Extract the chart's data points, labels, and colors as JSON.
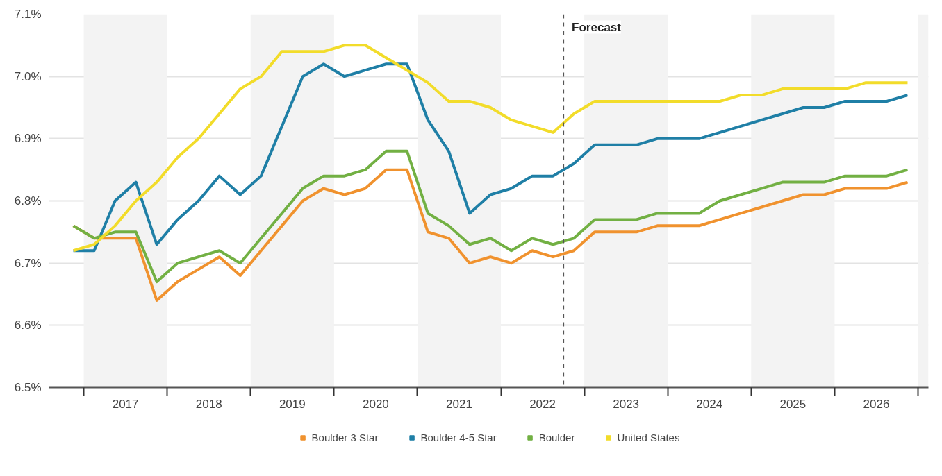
{
  "chart_data": {
    "type": "line",
    "x": [
      2016.875,
      2017.125,
      2017.375,
      2017.625,
      2017.875,
      2018.125,
      2018.375,
      2018.625,
      2018.875,
      2019.125,
      2019.375,
      2019.625,
      2019.875,
      2020.125,
      2020.375,
      2020.625,
      2020.875,
      2021.125,
      2021.375,
      2021.625,
      2021.875,
      2022.125,
      2022.375,
      2022.625,
      2022.875,
      2023.125,
      2023.375,
      2023.625,
      2023.875,
      2024.125,
      2024.375,
      2024.625,
      2024.875,
      2025.125,
      2025.375,
      2025.625,
      2025.875,
      2026.125,
      2026.375,
      2026.625,
      2026.875
    ],
    "series": [
      {
        "name": "Boulder 3 Star",
        "color": "#f0922e",
        "values": [
          6.76,
          6.74,
          6.74,
          6.74,
          6.64,
          6.67,
          6.69,
          6.71,
          6.68,
          6.72,
          6.76,
          6.8,
          6.82,
          6.81,
          6.82,
          6.85,
          6.85,
          6.75,
          6.74,
          6.7,
          6.71,
          6.7,
          6.72,
          6.71,
          6.72,
          6.75,
          6.75,
          6.75,
          6.76,
          6.76,
          6.76,
          6.77,
          6.78,
          6.79,
          6.8,
          6.81,
          6.81,
          6.82,
          6.82,
          6.82,
          6.83
        ]
      },
      {
        "name": "Boulder 4-5 Star",
        "color": "#1f7fa6",
        "values": [
          6.72,
          6.72,
          6.8,
          6.83,
          6.73,
          6.77,
          6.8,
          6.84,
          6.81,
          6.84,
          6.92,
          7.0,
          7.02,
          7.0,
          7.01,
          7.02,
          7.02,
          6.93,
          6.88,
          6.78,
          6.81,
          6.82,
          6.84,
          6.84,
          6.86,
          6.89,
          6.89,
          6.89,
          6.9,
          6.9,
          6.9,
          6.91,
          6.92,
          6.93,
          6.94,
          6.95,
          6.95,
          6.96,
          6.96,
          6.96,
          6.97
        ]
      },
      {
        "name": "Boulder",
        "color": "#72b043",
        "values": [
          6.76,
          6.74,
          6.75,
          6.75,
          6.67,
          6.7,
          6.71,
          6.72,
          6.7,
          6.74,
          6.78,
          6.82,
          6.84,
          6.84,
          6.85,
          6.88,
          6.88,
          6.78,
          6.76,
          6.73,
          6.74,
          6.72,
          6.74,
          6.73,
          6.74,
          6.77,
          6.77,
          6.77,
          6.78,
          6.78,
          6.78,
          6.8,
          6.81,
          6.82,
          6.83,
          6.83,
          6.83,
          6.84,
          6.84,
          6.84,
          6.85
        ]
      },
      {
        "name": "United States",
        "color": "#f2dc2a",
        "values": [
          6.72,
          6.73,
          6.76,
          6.8,
          6.83,
          6.87,
          6.9,
          6.94,
          6.98,
          7.0,
          7.04,
          7.04,
          7.04,
          7.05,
          7.05,
          7.03,
          7.01,
          6.99,
          6.96,
          6.96,
          6.95,
          6.93,
          6.92,
          6.91,
          6.94,
          6.96,
          6.96,
          6.96,
          6.96,
          6.96,
          6.96,
          6.96,
          6.97,
          6.97,
          6.98,
          6.98,
          6.98,
          6.98,
          6.99,
          6.99,
          6.99
        ]
      }
    ],
    "xlim": [
      2016.583,
      2027.125
    ],
    "xticks": [
      {
        "value": 2017,
        "label": null
      },
      {
        "value": 2017.5,
        "label": "2017"
      },
      {
        "value": 2018,
        "label": null
      },
      {
        "value": 2018.5,
        "label": "2018"
      },
      {
        "value": 2019,
        "label": null
      },
      {
        "value": 2019.5,
        "label": "2019"
      },
      {
        "value": 2020,
        "label": null
      },
      {
        "value": 2020.5,
        "label": "2020"
      },
      {
        "value": 2021,
        "label": null
      },
      {
        "value": 2021.5,
        "label": "2021"
      },
      {
        "value": 2022,
        "label": null
      },
      {
        "value": 2022.5,
        "label": "2022"
      },
      {
        "value": 2023,
        "label": null
      },
      {
        "value": 2023.5,
        "label": "2023"
      },
      {
        "value": 2024,
        "label": null
      },
      {
        "value": 2024.5,
        "label": "2024"
      },
      {
        "value": 2025,
        "label": null
      },
      {
        "value": 2025.5,
        "label": "2025"
      },
      {
        "value": 2026,
        "label": null
      },
      {
        "value": 2026.5,
        "label": "2026"
      },
      {
        "value": 2027,
        "label": null
      }
    ],
    "ylim": [
      6.5,
      7.1
    ],
    "yticks": [
      {
        "value": 6.5,
        "label": "6.5%"
      },
      {
        "value": 6.6,
        "label": "6.6%"
      },
      {
        "value": 6.7,
        "label": "6.7%"
      },
      {
        "value": 6.8,
        "label": "6.8%"
      },
      {
        "value": 6.9,
        "label": "6.9%"
      },
      {
        "value": 7.0,
        "label": "7.0%"
      },
      {
        "value": 7.1,
        "label": "7.1%"
      }
    ],
    "ref_lines": [
      {
        "axis": "x",
        "value": 2022.75,
        "label": "Forecast",
        "color": "#555555",
        "line_style": "dashed"
      }
    ],
    "bands": [
      {
        "axis": "x",
        "from": 2017,
        "to": 2018,
        "color": "#f3f3f3"
      },
      {
        "axis": "x",
        "from": 2019,
        "to": 2020,
        "color": "#f3f3f3"
      },
      {
        "axis": "x",
        "from": 2021,
        "to": 2022,
        "color": "#f3f3f3"
      },
      {
        "axis": "x",
        "from": 2023,
        "to": 2024,
        "color": "#f3f3f3"
      },
      {
        "axis": "x",
        "from": 2025,
        "to": 2026,
        "color": "#f3f3f3"
      },
      {
        "axis": "x",
        "from": 2027,
        "to": 2027.125,
        "color": "#f3f3f3"
      }
    ],
    "grid": "y",
    "legend": "bottom",
    "marker": "none",
    "line_style": "solid"
  }
}
